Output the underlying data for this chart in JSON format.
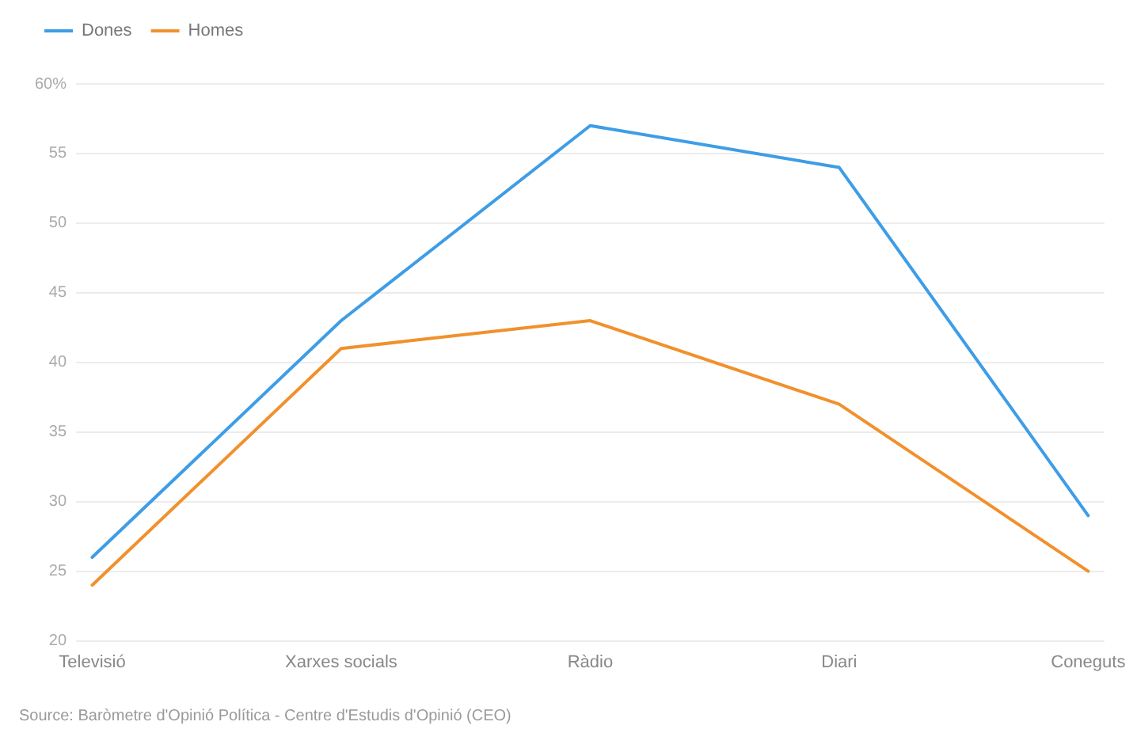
{
  "chart_data": {
    "type": "line",
    "categories": [
      "Televisió",
      "Xarxes socials",
      "Ràdio",
      "Diari",
      "Coneguts"
    ],
    "series": [
      {
        "name": "Dones",
        "color": "#3e9de6",
        "values": [
          26,
          43,
          57,
          54,
          29
        ]
      },
      {
        "name": "Homes",
        "color": "#f0912d",
        "values": [
          24,
          41,
          43,
          37,
          25
        ]
      }
    ],
    "ylim": [
      20,
      60
    ],
    "yticks": [
      20,
      25,
      30,
      35,
      40,
      45,
      50,
      55,
      {
        "value": 60,
        "label": "60%"
      }
    ],
    "grid": "y",
    "legend": "top left",
    "marker": "none",
    "line_style": "solid",
    "annotations": [
      "Source: Baròmetre d'Opinió Política - Centre d'Estudis d'Opinió (CEO)"
    ]
  }
}
